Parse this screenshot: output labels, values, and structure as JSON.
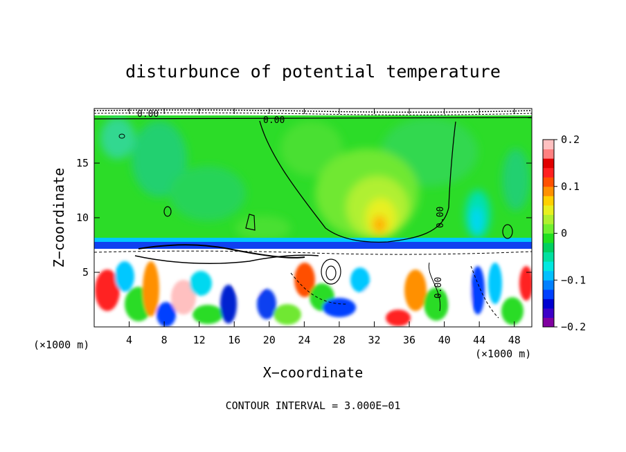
{
  "chart_data": {
    "type": "heatmap",
    "title": "disturbunce of potential temperature",
    "xlabel": "X−coordinate",
    "ylabel": "Z−coordinate",
    "x_unit_left": "(×1000 m)",
    "x_unit_right": "(×1000 m)",
    "footer": "CONTOUR INTERVAL = 3.000E−01",
    "xlim": [
      0,
      50
    ],
    "ylim": [
      0,
      20
    ],
    "x_ticks": [
      4,
      8,
      12,
      16,
      20,
      24,
      28,
      32,
      36,
      40,
      44,
      48
    ],
    "y_ticks": [
      5,
      10,
      15
    ],
    "colorbar": {
      "range": [
        -0.2,
        0.2
      ],
      "tick_values": [
        0.2,
        0.1,
        0,
        -0.1,
        -0.2
      ],
      "tick_labels": [
        "0.2",
        "0.1",
        "0",
        "−0.1",
        "−0.2"
      ],
      "colors": [
        "#8000a0",
        "#3c00c8",
        "#0000d0",
        "#0040ff",
        "#0080ff",
        "#00c0ff",
        "#00e8e0",
        "#00e0a0",
        "#00d060",
        "#20e020",
        "#70f030",
        "#b0f030",
        "#e8f020",
        "#ffd000",
        "#ff9000",
        "#ff5000",
        "#ff2020",
        "#e00000",
        "#ff8080",
        "#ffc0c0"
      ]
    },
    "contour_labels": [
      "0.00",
      "0.00",
      "0.00",
      "0.00",
      "0.00"
    ],
    "contour_interval": 0.3,
    "regions": [
      {
        "name": "upper layer",
        "z_range": [
          8,
          19.5
        ],
        "value": 0.0
      },
      {
        "name": "warm anomaly",
        "x_center": 32.5,
        "z_center": 9.5,
        "value": 0.1
      },
      {
        "name": "cold anomaly",
        "x_center": 43,
        "z_center": 9.5,
        "value": -0.05
      },
      {
        "name": "inversion band",
        "z_range": [
          7,
          8
        ],
        "value": -0.15
      },
      {
        "name": "turbulent lower layer",
        "z_range": [
          0,
          7
        ],
        "value_range": [
          -0.2,
          0.2
        ]
      }
    ]
  }
}
